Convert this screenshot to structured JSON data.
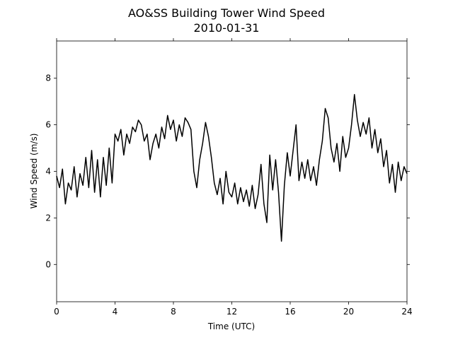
{
  "chart_data": {
    "type": "line",
    "title": "AO&SS Building Tower Wind Speed",
    "subtitle": "2010-01-31",
    "x_label": "Time (UTC)",
    "y_label": "Wind Speed (m/s)",
    "xlim": [
      0,
      24
    ],
    "xticks": [
      0,
      4,
      8,
      12,
      16,
      20,
      24
    ],
    "ylim": [
      -1.6,
      9.6
    ],
    "yticks": [
      0,
      2,
      4,
      6,
      8
    ],
    "series": [
      {
        "color": "#000000",
        "x": [
          0,
          0.2,
          0.4,
          0.6,
          0.8,
          1,
          1.2,
          1.4,
          1.6,
          1.8,
          2,
          2.2,
          2.4,
          2.6,
          2.8,
          3,
          3.2,
          3.4,
          3.6,
          3.8,
          4,
          4.2,
          4.4,
          4.6,
          4.8,
          5,
          5.2,
          5.4,
          5.6,
          5.8,
          6,
          6.2,
          6.4,
          6.6,
          6.8,
          7,
          7.2,
          7.4,
          7.6,
          7.8,
          8,
          8.2,
          8.4,
          8.6,
          8.8,
          9,
          9.2,
          9.4,
          9.6,
          9.8,
          10,
          10.2,
          10.4,
          10.6,
          10.8,
          11,
          11.2,
          11.4,
          11.6,
          11.8,
          12,
          12.2,
          12.4,
          12.6,
          12.8,
          13,
          13.2,
          13.4,
          13.6,
          13.8,
          14,
          14.2,
          14.4,
          14.6,
          14.8,
          15,
          15.2,
          15.4,
          15.6,
          15.8,
          16,
          16.2,
          16.4,
          16.6,
          16.8,
          17,
          17.2,
          17.4,
          17.6,
          17.8,
          18,
          18.2,
          18.4,
          18.6,
          18.8,
          19,
          19.2,
          19.4,
          19.6,
          19.8,
          20,
          20.2,
          20.4,
          20.6,
          20.8,
          21,
          21.2,
          21.4,
          21.6,
          21.8,
          22,
          22.2,
          22.4,
          22.6,
          22.8,
          23,
          23.2,
          23.4,
          23.6,
          23.8,
          24
        ],
        "values": [
          3.8,
          3.3,
          4.1,
          2.6,
          3.5,
          3.2,
          4.2,
          2.9,
          3.9,
          3.4,
          4.6,
          3.3,
          4.9,
          3.1,
          4.5,
          2.9,
          4.6,
          3.4,
          5.0,
          3.5,
          5.6,
          5.3,
          5.8,
          4.7,
          5.6,
          5.2,
          5.9,
          5.7,
          6.2,
          6.0,
          5.3,
          5.6,
          4.5,
          5.2,
          5.6,
          5.0,
          5.9,
          5.4,
          6.4,
          5.8,
          6.2,
          5.3,
          6.0,
          5.5,
          6.3,
          6.1,
          5.8,
          4.0,
          3.3,
          4.5,
          5.2,
          6.1,
          5.5,
          4.6,
          3.5,
          3.0,
          3.7,
          2.6,
          4.0,
          3.1,
          2.9,
          3.5,
          2.6,
          3.3,
          2.7,
          3.2,
          2.5,
          3.4,
          2.4,
          3.0,
          4.3,
          2.6,
          1.8,
          4.7,
          3.2,
          4.5,
          3.1,
          1.0,
          3.4,
          4.8,
          3.8,
          4.9,
          6.0,
          3.6,
          4.4,
          3.7,
          4.5,
          3.6,
          4.2,
          3.4,
          4.5,
          5.3,
          6.7,
          6.3,
          5.0,
          4.4,
          5.2,
          4.0,
          5.5,
          4.6,
          5.0,
          6.0,
          7.3,
          6.2,
          5.5,
          6.1,
          5.6,
          6.3,
          5.0,
          5.8,
          4.8,
          5.4,
          4.2,
          4.9,
          3.5,
          4.3,
          3.1,
          4.4,
          3.6,
          4.2,
          3.9
        ]
      }
    ]
  }
}
